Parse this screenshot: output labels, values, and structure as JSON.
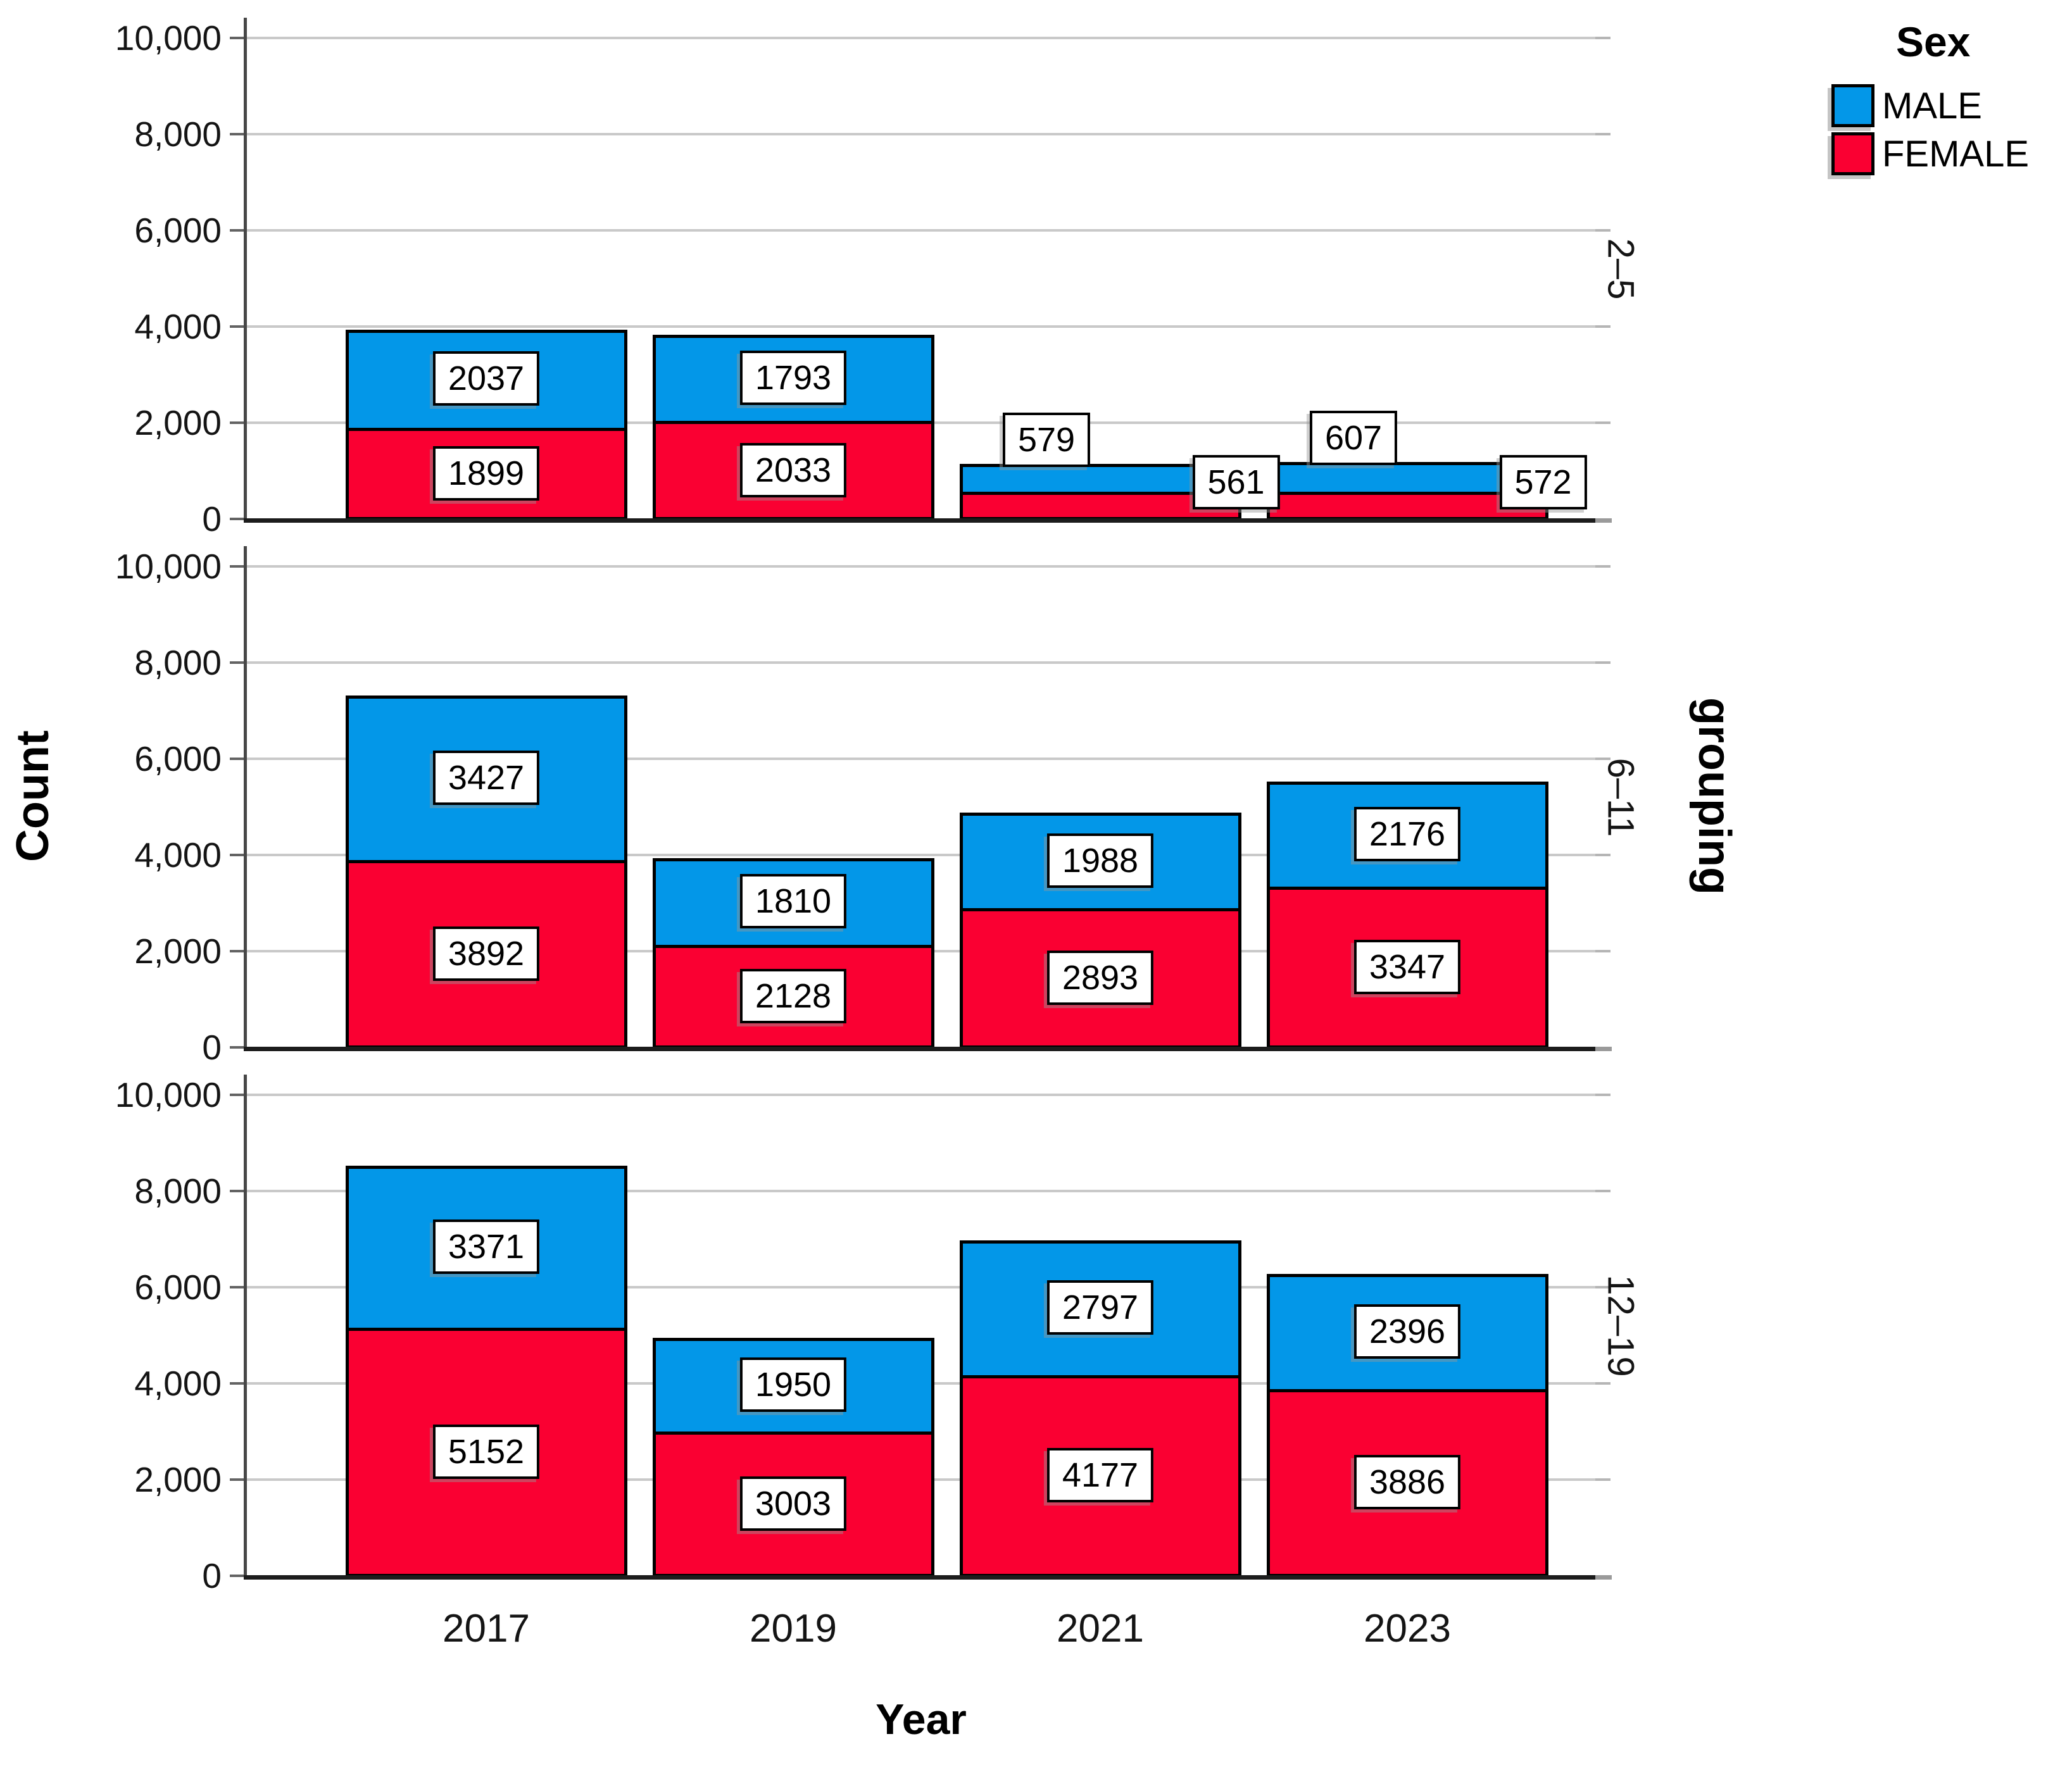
{
  "chart_data": {
    "type": "bar",
    "stacked": true,
    "xlabel": "Year",
    "ylabel": "Count",
    "facet_axis_label": "grouping",
    "categories": [
      "2017",
      "2019",
      "2021",
      "2023"
    ],
    "ylim": [
      0,
      10000
    ],
    "yticks": [
      0,
      2000,
      4000,
      6000,
      8000,
      10000
    ],
    "ytick_labels": [
      "0",
      "2,000",
      "4,000",
      "6,000",
      "8,000",
      "10,000"
    ],
    "grid": true,
    "legend": {
      "title": "Sex",
      "position": "top-right",
      "entries": [
        {
          "label": "MALE",
          "color": "#0397e8"
        },
        {
          "label": "FEMALE",
          "color": "#fa0032"
        }
      ]
    },
    "facets": [
      {
        "label": "2–5",
        "series": [
          {
            "name": "MALE",
            "values": [
              2037,
              1793,
              579,
              607
            ]
          },
          {
            "name": "FEMALE",
            "values": [
              1899,
              2033,
              561,
              572
            ]
          }
        ]
      },
      {
        "label": "6–11",
        "series": [
          {
            "name": "MALE",
            "values": [
              3427,
              1810,
              1988,
              2176
            ]
          },
          {
            "name": "FEMALE",
            "values": [
              3892,
              2128,
              2893,
              3347
            ]
          }
        ]
      },
      {
        "label": "12–19",
        "series": [
          {
            "name": "MALE",
            "values": [
              3371,
              1950,
              2797,
              2396
            ]
          },
          {
            "name": "FEMALE",
            "values": [
              5152,
              3003,
              4177,
              3886
            ]
          }
        ]
      }
    ]
  }
}
